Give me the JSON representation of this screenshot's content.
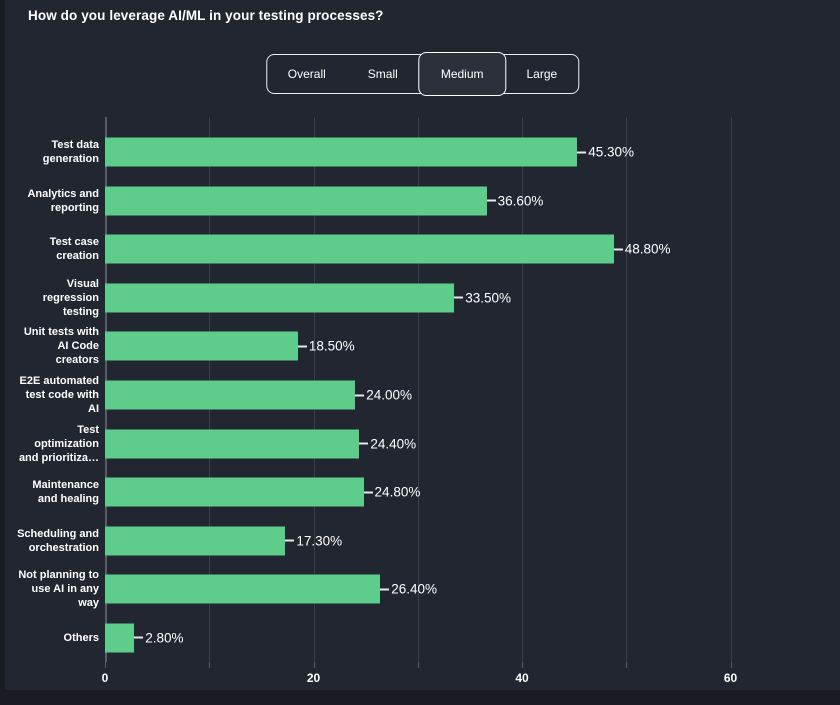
{
  "title": "How do you leverage AI/ML in your testing processes?",
  "filters": {
    "options": [
      {
        "label": "Overall",
        "selected": false
      },
      {
        "label": "Small",
        "selected": false
      },
      {
        "label": "Medium",
        "selected": true
      },
      {
        "label": "Large",
        "selected": false
      }
    ]
  },
  "colors": {
    "bar": "#5ecd8b",
    "background": "#222631",
    "grid": "#3a3f4b",
    "text": "#ffffff"
  },
  "chart_data": {
    "type": "bar",
    "orientation": "horizontal",
    "title": "How do you leverage AI/ML in your testing processes?",
    "categories": [
      "Test data\ngeneration",
      "Analytics and\nreporting",
      "Test case\ncreation",
      "Visual\nregression\ntesting",
      "Unit tests with\nAI Code\ncreators",
      "E2E automated\ntest code with\nAI",
      "Test\noptimization\nand prioritiza…",
      "Maintenance\nand healing",
      "Scheduling and\norchestration",
      "Not planning to\nuse AI in any\nway",
      "Others"
    ],
    "values": [
      45.3,
      36.6,
      48.8,
      33.5,
      18.5,
      24.0,
      24.4,
      24.8,
      17.3,
      26.4,
      2.8
    ],
    "value_labels": [
      "45.30%",
      "36.60%",
      "48.80%",
      "33.50%",
      "18.50%",
      "24.00%",
      "24.40%",
      "24.80%",
      "17.30%",
      "26.40%",
      "2.80%"
    ],
    "xlabel": "",
    "ylabel": "",
    "xlim": [
      0,
      70.5
    ],
    "x_ticks": [
      {
        "value": 0,
        "label": "0"
      },
      {
        "value": 10,
        "label": ""
      },
      {
        "value": 20,
        "label": "20"
      },
      {
        "value": 30,
        "label": ""
      },
      {
        "value": 40,
        "label": "40"
      },
      {
        "value": 50,
        "label": ""
      },
      {
        "value": 60,
        "label": "60"
      }
    ],
    "grid": true,
    "legend": false
  }
}
